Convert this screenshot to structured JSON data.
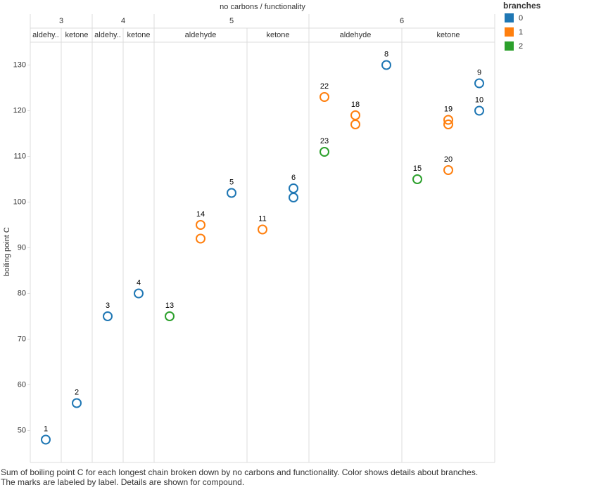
{
  "chart_data": {
    "type": "scatter",
    "title": "no carbons  /  functionality",
    "y_label": "boiling point C",
    "ylim": [
      43,
      135
    ],
    "yticks": [
      50,
      60,
      70,
      80,
      90,
      100,
      110,
      120,
      130
    ],
    "legend": {
      "title": "branches",
      "entries": [
        {
          "name": "0",
          "color": "#1f77b4"
        },
        {
          "name": "1",
          "color": "#ff7f0e"
        },
        {
          "name": "2",
          "color": "#2ca02c"
        }
      ]
    },
    "groups": [
      {
        "name": "3",
        "panes": [
          {
            "name": "aldehy..",
            "columns": [
              [
                {
                  "value": 48,
                  "label": "1",
                  "branches": 0
                }
              ]
            ]
          },
          {
            "name": "ketone",
            "columns": [
              [
                {
                  "value": 56,
                  "label": "2",
                  "branches": 0
                }
              ]
            ]
          }
        ]
      },
      {
        "name": "4",
        "panes": [
          {
            "name": "aldehy..",
            "columns": [
              [
                {
                  "value": 75,
                  "label": "3",
                  "branches": 0
                }
              ]
            ]
          },
          {
            "name": "ketone",
            "columns": [
              [
                {
                  "value": 80,
                  "label": "4",
                  "branches": 0
                }
              ]
            ]
          }
        ]
      },
      {
        "name": "5",
        "panes": [
          {
            "name": "aldehyde",
            "columns": [
              [
                {
                  "value": 75,
                  "label": "13",
                  "branches": 2
                }
              ],
              [
                {
                  "value": 95,
                  "label": "14",
                  "branches": 1
                },
                {
                  "value": 92,
                  "label": null,
                  "branches": 1
                }
              ],
              [
                {
                  "value": 102,
                  "label": "5",
                  "branches": 0
                }
              ]
            ]
          },
          {
            "name": "ketone",
            "columns": [
              [
                {
                  "value": 94,
                  "label": "11",
                  "branches": 1
                }
              ],
              [
                {
                  "value": 103,
                  "label": "6",
                  "branches": 0
                },
                {
                  "value": 101,
                  "label": null,
                  "branches": 0
                }
              ]
            ]
          }
        ]
      },
      {
        "name": "6",
        "panes": [
          {
            "name": "aldehyde",
            "columns": [
              [
                {
                  "value": 123,
                  "label": "22",
                  "branches": 1
                },
                {
                  "value": 111,
                  "label": "23",
                  "branches": 2
                }
              ],
              [
                {
                  "value": 119,
                  "label": "18",
                  "branches": 1
                },
                {
                  "value": 117,
                  "label": null,
                  "branches": 1
                }
              ],
              [
                {
                  "value": 130,
                  "label": "8",
                  "branches": 0
                }
              ]
            ]
          },
          {
            "name": "ketone",
            "columns": [
              [
                {
                  "value": 105,
                  "label": "15",
                  "branches": 2
                }
              ],
              [
                {
                  "value": 118,
                  "label": "19",
                  "branches": 1
                },
                {
                  "value": 117,
                  "label": null,
                  "branches": 1
                },
                {
                  "value": 107,
                  "label": "20",
                  "branches": 1
                }
              ],
              [
                {
                  "value": 126,
                  "label": "9",
                  "branches": 0
                },
                {
                  "value": 120,
                  "label": "10",
                  "branches": 0
                }
              ]
            ]
          }
        ]
      }
    ],
    "caption": [
      "Sum of boiling point C for each longest chain broken down by no carbons and functionality.  Color shows details about branches.",
      "The marks are labeled by label.  Details are shown for compound."
    ]
  }
}
